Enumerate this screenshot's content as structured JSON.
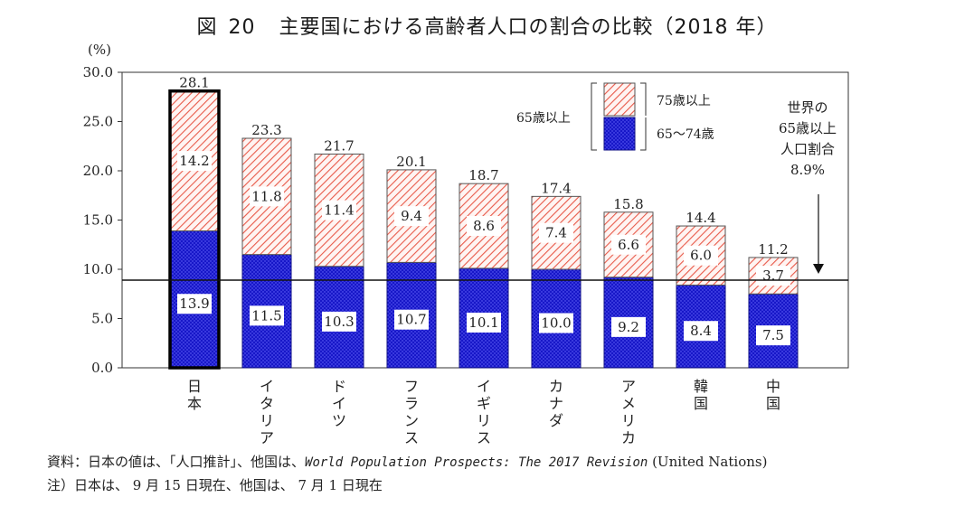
{
  "title": {
    "fig_label": "図",
    "fig_number": "20",
    "text": "主要国における高齢者人口の割合の比較（2018 年）"
  },
  "chart_data": {
    "type": "bar",
    "stacked": true,
    "y_unit": "(%)",
    "ylim": [
      0,
      30
    ],
    "yticks": [
      "0.0",
      "5.0",
      "10.0",
      "15.0",
      "20.0",
      "25.0",
      "30.0"
    ],
    "categories": [
      "日本",
      "イタリア",
      "ドイツ",
      "フランス",
      "イギリス",
      "カナダ",
      "アメリカ",
      "韓国",
      "中国"
    ],
    "series": [
      {
        "name": "65～74歳",
        "values": [
          13.9,
          11.5,
          10.3,
          10.7,
          10.1,
          10.0,
          9.2,
          8.4,
          7.5
        ],
        "color": "#1a1ad0"
      },
      {
        "name": "75歳以上",
        "values": [
          14.2,
          11.8,
          11.4,
          9.4,
          8.6,
          7.4,
          6.6,
          6.0,
          3.7
        ],
        "color": "#e85a4a"
      }
    ],
    "totals": [
      28.1,
      23.3,
      21.7,
      20.1,
      18.7,
      17.4,
      15.8,
      14.4,
      11.2
    ],
    "highlight_category": "日本",
    "legend": {
      "group_label": "65歳以上",
      "placement": "top-right"
    },
    "reference_line": {
      "value": 8.9,
      "label_lines": [
        "世界の",
        "65歳以上",
        "人口割合",
        "8.9%"
      ]
    },
    "grid": false
  },
  "source": {
    "prefix": "資料：日本の値は、「人口推計」、他国は、",
    "italic": "World Population Prospects: The 2017 Revision",
    "suffix": " (United Nations)"
  },
  "note": "注）日本は、 9 月 15 日現在、他国は、 7 月 1 日現在"
}
